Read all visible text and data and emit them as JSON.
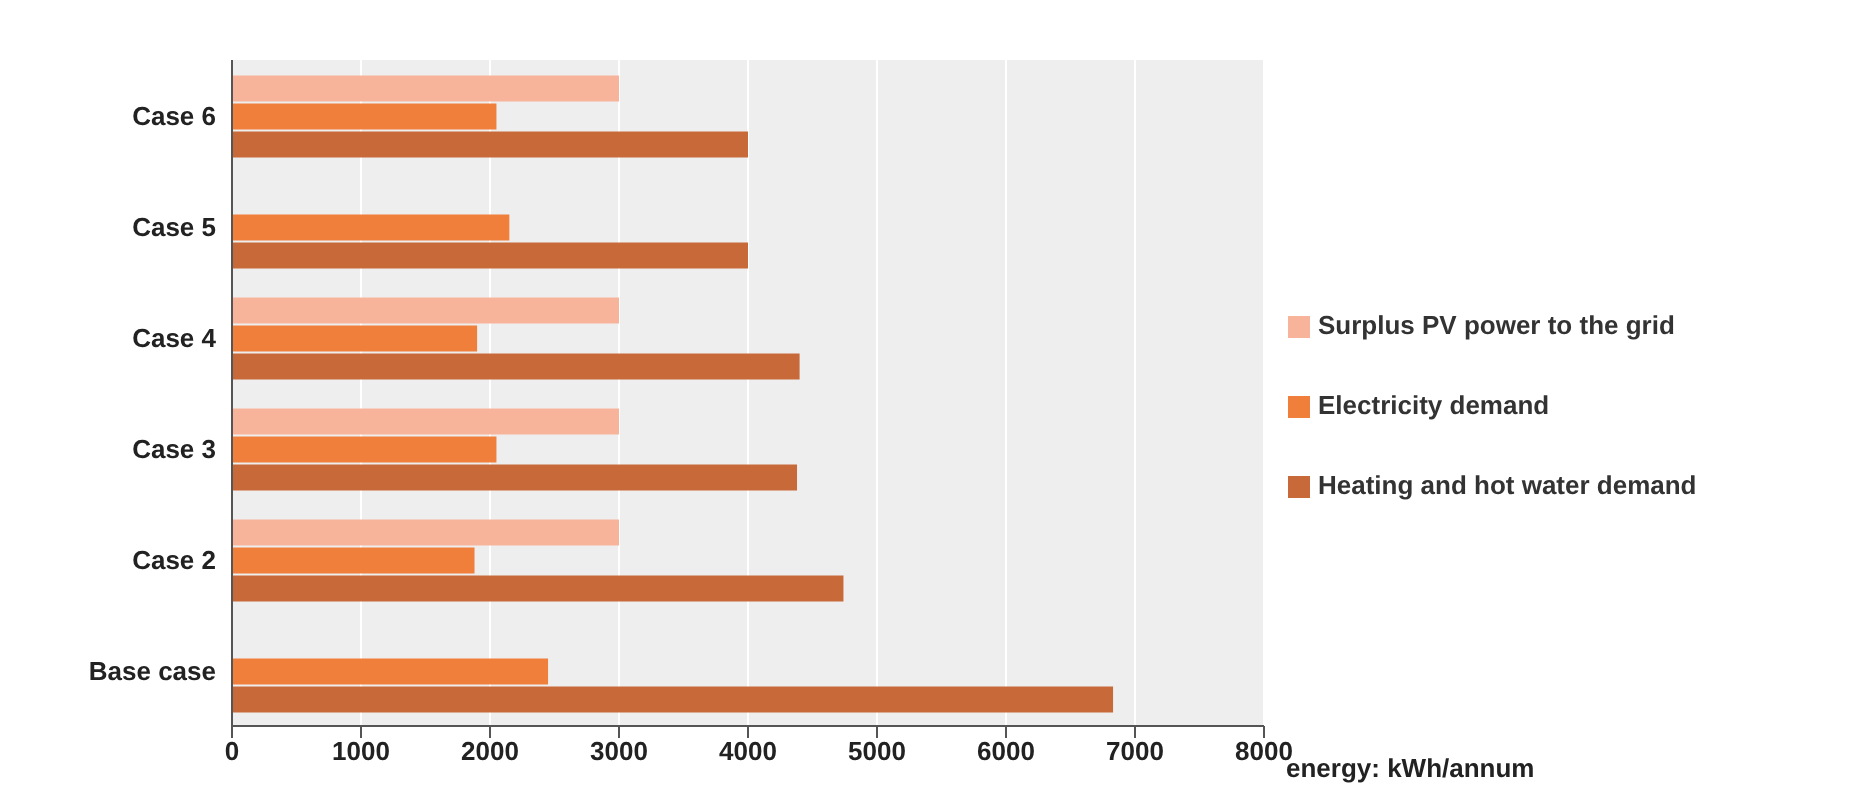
{
  "chart_data": {
    "type": "bar",
    "orientation": "horizontal",
    "xlabel": "energy: kWh/annum",
    "categories": [
      "Case 6",
      "Case 5",
      "Case 4",
      "Case 3",
      "Case 2",
      "Base case"
    ],
    "series": [
      {
        "name": "Surplus PV power to the grid",
        "color": "#f7b49a",
        "values": [
          3000,
          null,
          3000,
          3000,
          3000,
          null
        ]
      },
      {
        "name": "Electricity demand",
        "color": "#f07f3c",
        "values": [
          2050,
          2150,
          1900,
          2050,
          1880,
          2450
        ]
      },
      {
        "name": "Heating and hot water demand",
        "color": "#c8693a",
        "values": [
          4000,
          4000,
          4400,
          4380,
          4740,
          6830
        ]
      }
    ],
    "xlim": [
      0,
      8000
    ],
    "xticks": [
      0,
      1000,
      2000,
      3000,
      4000,
      5000,
      6000,
      7000,
      8000
    ],
    "grid": "x",
    "legend": "right"
  }
}
